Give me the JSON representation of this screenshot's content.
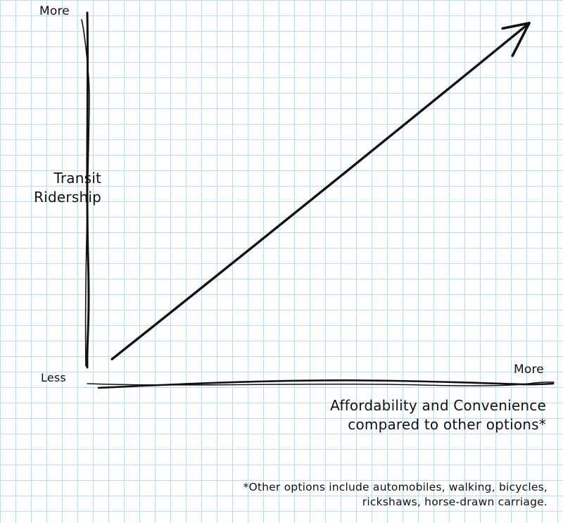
{
  "chart_data": {
    "type": "line",
    "ylabel": "Transit\nRidership",
    "xlabel": "Affordability and Convenience\ncompared to other options*",
    "y_tick_labels": {
      "high": "More",
      "low": "Less"
    },
    "x_tick_labels": {
      "high": "More"
    },
    "footnote": "*Other options include automobiles, walking, bicycles,\nrickshaws, horse-drawn carriage.",
    "xlim": [
      0,
      1
    ],
    "ylim": [
      0,
      1
    ],
    "series": [
      {
        "x": [
          0.05,
          1.0
        ],
        "y": [
          0.05,
          0.95
        ],
        "color": "#111111",
        "arrow": true
      }
    ],
    "grid": true,
    "grid_color": "#bfd9ee",
    "background_color": "#ffffff"
  }
}
